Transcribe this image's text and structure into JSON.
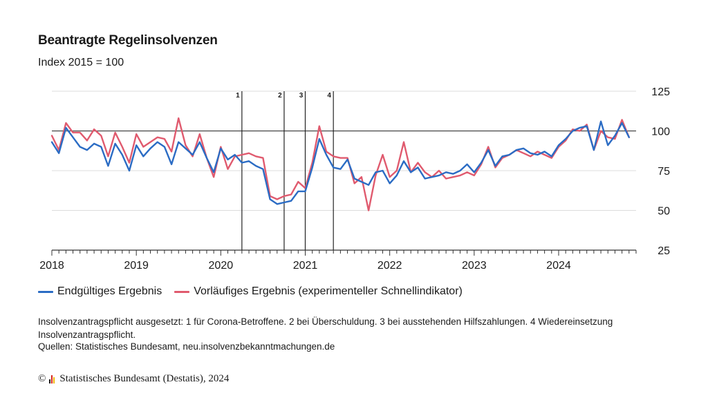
{
  "chart_data": {
    "type": "line",
    "title": "Beantragte Regelinsolvenzen",
    "subtitle": "Index 2015 = 100",
    "ylim": [
      25,
      125
    ],
    "yticks": [
      25,
      50,
      75,
      100,
      125
    ],
    "reference_line": 100,
    "xlim": [
      2018.0,
      2024.917
    ],
    "xticks": [
      "2018",
      "2019",
      "2020",
      "2021",
      "2022",
      "2023",
      "2024"
    ],
    "events": [
      {
        "label": "1",
        "x": 2020.25
      },
      {
        "label": "2",
        "x": 2020.75
      },
      {
        "label": "3",
        "x": 2021.0
      },
      {
        "label": "4",
        "x": 2021.333
      }
    ],
    "legend_position": "bottom",
    "series": [
      {
        "name": "Endgültiges Ergebnis",
        "color": "#2b6cc4",
        "start": "2018-01",
        "values": [
          93,
          86,
          102,
          96,
          90,
          88,
          92,
          90,
          78,
          92,
          85,
          75,
          91,
          84,
          89,
          93,
          90,
          79,
          93,
          89,
          85,
          93,
          83,
          74,
          89,
          82,
          85,
          80,
          81,
          78,
          76,
          57,
          54,
          55,
          56,
          62,
          62,
          77,
          95,
          85,
          77,
          76,
          82,
          70,
          68,
          66,
          74,
          75,
          67,
          72,
          81,
          74,
          77,
          70,
          71,
          72,
          74,
          73,
          75,
          79,
          74,
          80,
          88,
          78,
          84,
          85,
          88,
          89,
          86,
          85,
          87,
          84,
          91,
          95,
          100,
          102,
          103,
          88,
          106,
          91,
          97,
          105,
          96
        ]
      },
      {
        "name": "Vorläufiges Ergebnis (experimenteller Schnellindikator)",
        "color": "#e05a6e",
        "start": "2018-01",
        "values": [
          97,
          88,
          105,
          99,
          99,
          94,
          101,
          97,
          84,
          99,
          90,
          80,
          98,
          90,
          93,
          96,
          95,
          87,
          108,
          91,
          84,
          98,
          83,
          71,
          90,
          76,
          84,
          85,
          86,
          84,
          83,
          59,
          57,
          59,
          60,
          68,
          64,
          80,
          103,
          87,
          84,
          83,
          83,
          67,
          71,
          50,
          72,
          85,
          71,
          75,
          93,
          74,
          80,
          74,
          71,
          75,
          70,
          71,
          72,
          74,
          72,
          79,
          90,
          77,
          83,
          85,
          88,
          86,
          84,
          87,
          85,
          83,
          90,
          94,
          101,
          100,
          104,
          88,
          100,
          96,
          95,
          107,
          96
        ]
      }
    ]
  },
  "footnote": "Insolvenzantragspflicht ausgesetzt: 1 für Corona-Betroffene. 2 bei Überschuldung. 3 bei ausstehenden Hilfszahlungen. 4 Wiedereinsetzung Insolvenzantragspflicht.",
  "source": "Quellen: Statistisches Bundesamt, neu.insolvenzbekanntmachungen.de",
  "copyright": {
    "symbol": "©",
    "text": "Statistisches Bundesamt (Destatis), 2024",
    "logo_colors": [
      "#1a1a1a",
      "#d7261e",
      "#f2b700"
    ]
  }
}
